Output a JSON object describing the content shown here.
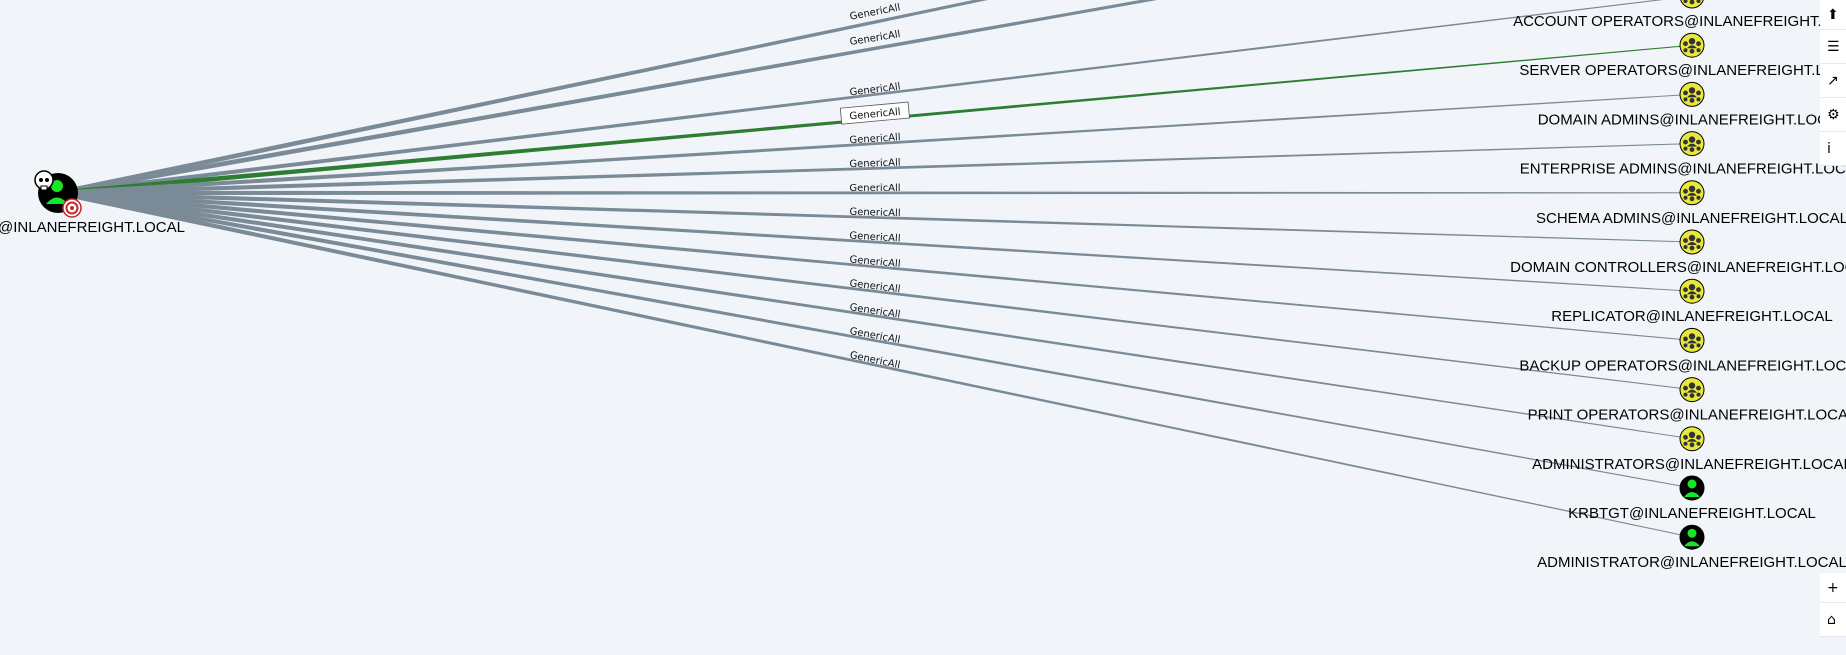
{
  "source_node": {
    "label": "@INLANEFREIGHT.LOCAL",
    "icon": "user-icon-owned-highvalue",
    "color": "#17e625"
  },
  "edge_label": "GenericAll",
  "highlighted_edge_color": "#2e7d32",
  "edge_color": "#7a8a96",
  "targets": [
    {
      "label": "ACCOUNT OPERATORS@INLANEFREIGHT.LOCAL",
      "type": "group"
    },
    {
      "label": "SERVER OPERATORS@INLANEFREIGHT.LOCAL",
      "type": "group"
    },
    {
      "label": "DOMAIN ADMINS@INLANEFREIGHT.LOCAL",
      "type": "group"
    },
    {
      "label": "ENTERPRISE ADMINS@INLANEFREIGHT.LOCAL",
      "type": "group"
    },
    {
      "label": "SCHEMA ADMINS@INLANEFREIGHT.LOCAL",
      "type": "group"
    },
    {
      "label": "DOMAIN CONTROLLERS@INLANEFREIGHT.LOCAL",
      "type": "group"
    },
    {
      "label": "REPLICATOR@INLANEFREIGHT.LOCAL",
      "type": "group"
    },
    {
      "label": "BACKUP OPERATORS@INLANEFREIGHT.LOCAL",
      "type": "group"
    },
    {
      "label": "PRINT OPERATORS@INLANEFREIGHT.LOCAL",
      "type": "group"
    },
    {
      "label": "ADMINISTRATORS@INLANEFREIGHT.LOCAL",
      "type": "group"
    },
    {
      "label": "KRBTGT@INLANEFREIGHT.LOCAL",
      "type": "user"
    },
    {
      "label": "ADMINISTRATOR@INLANEFREIGHT.LOCAL",
      "type": "user"
    }
  ],
  "colors": {
    "group_node": "#e8e83a",
    "user_node": "#17e625",
    "background": "#f1f5fa"
  },
  "toolbar_top": [
    {
      "name": "upload-button",
      "icon": "upload-icon",
      "glyph": "⬆"
    },
    {
      "name": "queries-button",
      "icon": "list-icon",
      "glyph": "☰"
    },
    {
      "name": "analysis-button",
      "icon": "chart-icon",
      "glyph": "↗"
    },
    {
      "name": "settings-button",
      "icon": "gears-icon",
      "glyph": "⚙"
    },
    {
      "name": "info-button",
      "icon": "info-icon",
      "glyph": "i"
    }
  ],
  "toolbar_bottom": [
    {
      "name": "zoom-in-button",
      "icon": "plus-icon",
      "glyph": "+"
    },
    {
      "name": "home-button",
      "icon": "home-icon",
      "glyph": "⌂"
    }
  ]
}
